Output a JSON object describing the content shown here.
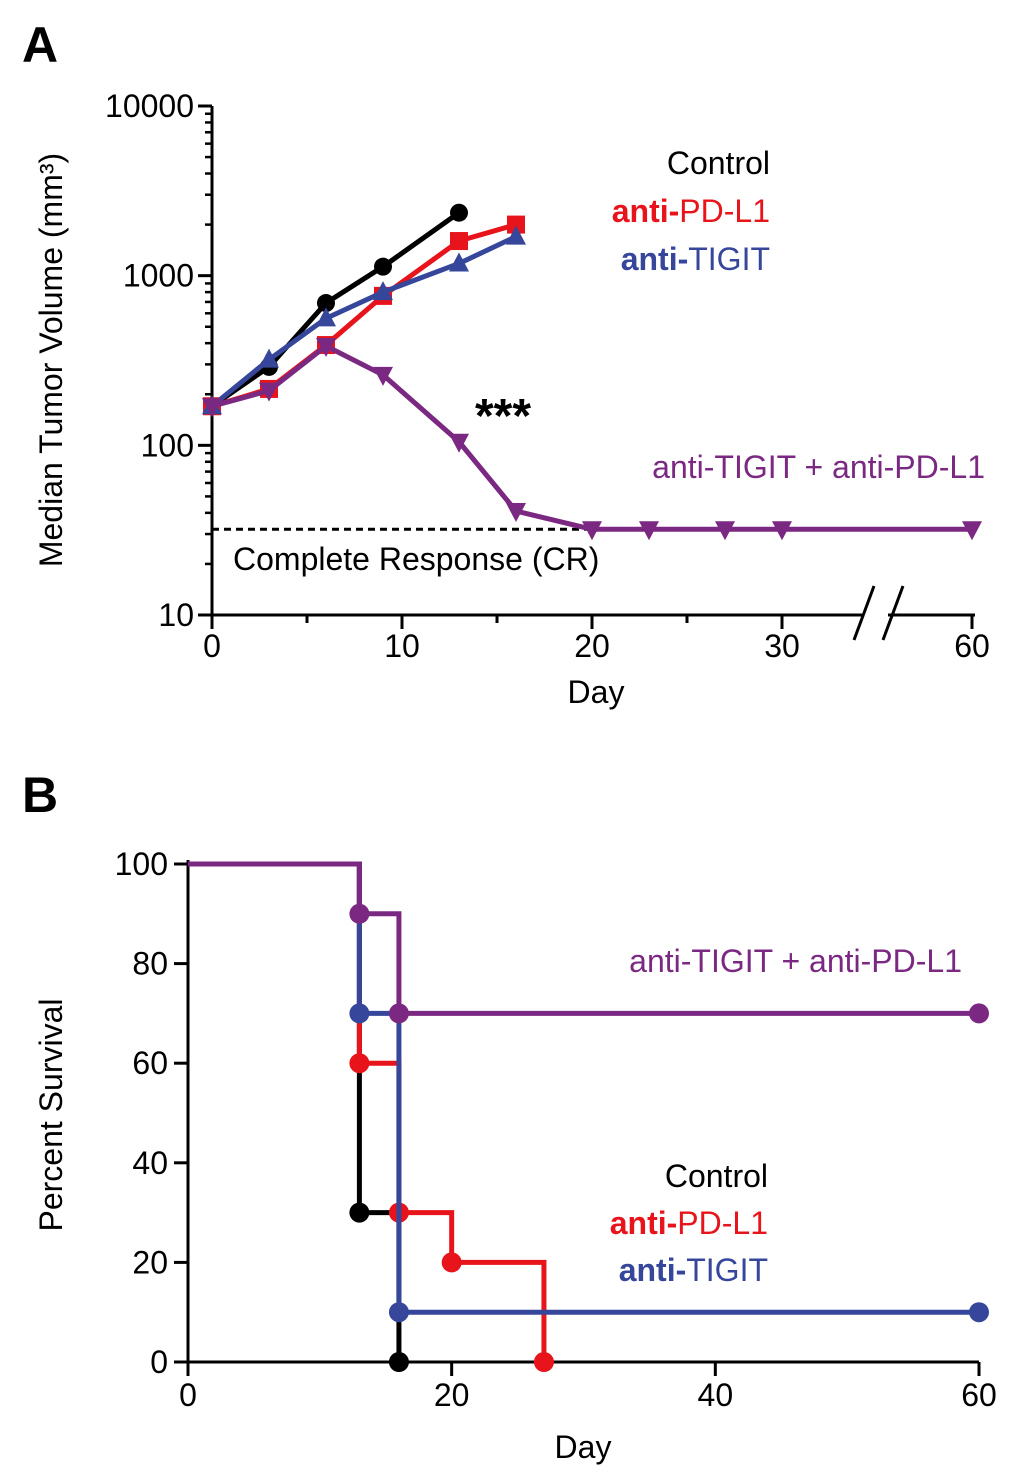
{
  "colors": {
    "control": "#000000",
    "anti_pdl1": "#e8141c",
    "anti_tigit": "#36469b",
    "combo": "#7b2882"
  },
  "chart_data": [
    {
      "panel": "A",
      "type": "line",
      "ylabel": "Median Tumor Volume (mm³)",
      "xlabel": "Day",
      "yscale": "log",
      "ylim": [
        10,
        10000
      ],
      "y_ticks": [
        "10",
        "100",
        "1000",
        "10000"
      ],
      "x_axis_break": true,
      "x_ticks": [
        "0",
        "10",
        "20",
        "30",
        "60"
      ],
      "grid": false,
      "reference_line": {
        "y": 32,
        "label": "Complete Response (CR)"
      },
      "annotation": "***",
      "legend": [
        {
          "bold": "",
          "text": "Control",
          "color": "#000000"
        },
        {
          "bold": "anti-",
          "text": "PD-L1",
          "color": "#e8141c"
        },
        {
          "bold": "anti-",
          "text": "TIGIT",
          "color": "#36469b"
        }
      ],
      "series": [
        {
          "key": "control",
          "marker": "circle",
          "color": "#000000",
          "points": [
            [
              0,
              170
            ],
            [
              3,
              290
            ],
            [
              6,
              690
            ],
            [
              9,
              1130
            ],
            [
              13,
              2350
            ]
          ]
        },
        {
          "key": "anti_pdl1",
          "marker": "square",
          "color": "#e8141c",
          "points": [
            [
              0,
              170
            ],
            [
              3,
              215
            ],
            [
              6,
              390
            ],
            [
              9,
              760
            ],
            [
              13,
              1600
            ],
            [
              16,
              2000
            ]
          ]
        },
        {
          "key": "anti_tigit",
          "marker": "triangle-up",
          "color": "#36469b",
          "points": [
            [
              0,
              170
            ],
            [
              3,
              320
            ],
            [
              6,
              560
            ],
            [
              9,
              800
            ],
            [
              13,
              1180
            ],
            [
              16,
              1700
            ]
          ]
        },
        {
          "key": "combo",
          "marker": "triangle-down",
          "color": "#7b2882",
          "label": "anti-TIGIT + anti-PD-L1",
          "points": [
            [
              0,
              170
            ],
            [
              3,
              210
            ],
            [
              6,
              385
            ],
            [
              9,
              260
            ],
            [
              13,
              105
            ],
            [
              16,
              41
            ],
            [
              20,
              32
            ],
            [
              23,
              32
            ],
            [
              27,
              32
            ],
            [
              30,
              32
            ],
            [
              60,
              32
            ]
          ]
        }
      ]
    },
    {
      "panel": "B",
      "type": "line",
      "ylabel": "Percent Survival",
      "xlabel": "Day",
      "ylim": [
        0,
        100
      ],
      "xlim": [
        0,
        60
      ],
      "y_ticks": [
        "0",
        "20",
        "40",
        "60",
        "80",
        "100"
      ],
      "x_ticks": [
        "0",
        "20",
        "40",
        "60"
      ],
      "grid": false,
      "legend": [
        {
          "bold": "",
          "text": "Control",
          "color": "#000000"
        },
        {
          "bold": "anti-",
          "text": "PD-L1",
          "color": "#e8141c"
        },
        {
          "bold": "anti-",
          "text": "TIGIT",
          "color": "#36469b"
        }
      ],
      "series": [
        {
          "key": "control",
          "color": "#000000",
          "steps": [
            [
              0,
              100
            ],
            [
              13,
              30
            ],
            [
              16,
              0
            ]
          ],
          "markers": [
            [
              13,
              30
            ],
            [
              16,
              0
            ]
          ]
        },
        {
          "key": "anti_pdl1",
          "color": "#e8141c",
          "steps": [
            [
              0,
              100
            ],
            [
              13,
              60
            ],
            [
              16,
              30
            ],
            [
              20,
              20
            ],
            [
              27,
              0
            ]
          ],
          "markers": [
            [
              13,
              60
            ],
            [
              16,
              30
            ],
            [
              20,
              20
            ],
            [
              27,
              0
            ]
          ]
        },
        {
          "key": "anti_tigit",
          "color": "#36469b",
          "steps": [
            [
              0,
              100
            ],
            [
              13,
              70
            ],
            [
              16,
              10
            ],
            [
              60,
              10
            ]
          ],
          "markers": [
            [
              13,
              70
            ],
            [
              16,
              10
            ],
            [
              60,
              10
            ]
          ]
        },
        {
          "key": "combo",
          "color": "#7b2882",
          "label": "anti-TIGIT + anti-PD-L1",
          "steps": [
            [
              0,
              100
            ],
            [
              13,
              90
            ],
            [
              16,
              70
            ],
            [
              60,
              70
            ]
          ],
          "markers": [
            [
              13,
              90
            ],
            [
              16,
              70
            ],
            [
              60,
              70
            ]
          ]
        }
      ]
    }
  ]
}
